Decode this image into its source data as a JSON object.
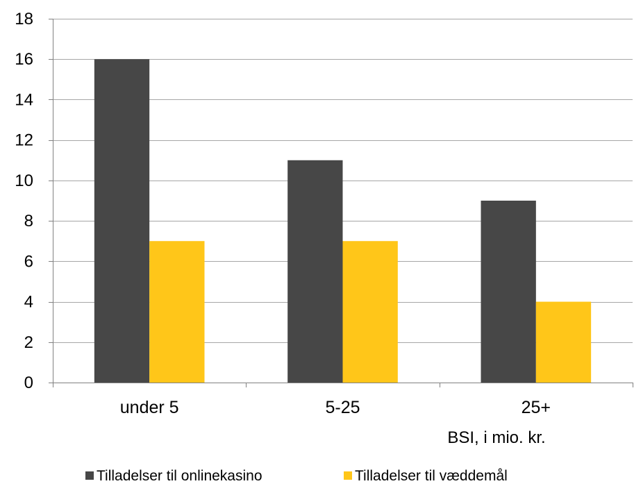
{
  "chart_data": {
    "type": "bar",
    "categories": [
      "under 5",
      "5-25",
      "25+"
    ],
    "series": [
      {
        "name": "Tilladelser til onlinekasino",
        "values": [
          16,
          11,
          9
        ],
        "color": "#474747"
      },
      {
        "name": "Tilladelser til væddemål",
        "values": [
          7,
          7,
          4
        ],
        "color": "#FFC619"
      }
    ],
    "xlabel": "BSI, i mio. kr.",
    "ylabel": "",
    "ylim": [
      0,
      18
    ],
    "yticks": [
      0,
      2,
      4,
      6,
      8,
      10,
      12,
      14,
      16,
      18
    ],
    "grid": true,
    "legend": "bottom",
    "gridline_color": "#a6a6a6",
    "axis_color": "#808080",
    "text_color": "#000000"
  }
}
